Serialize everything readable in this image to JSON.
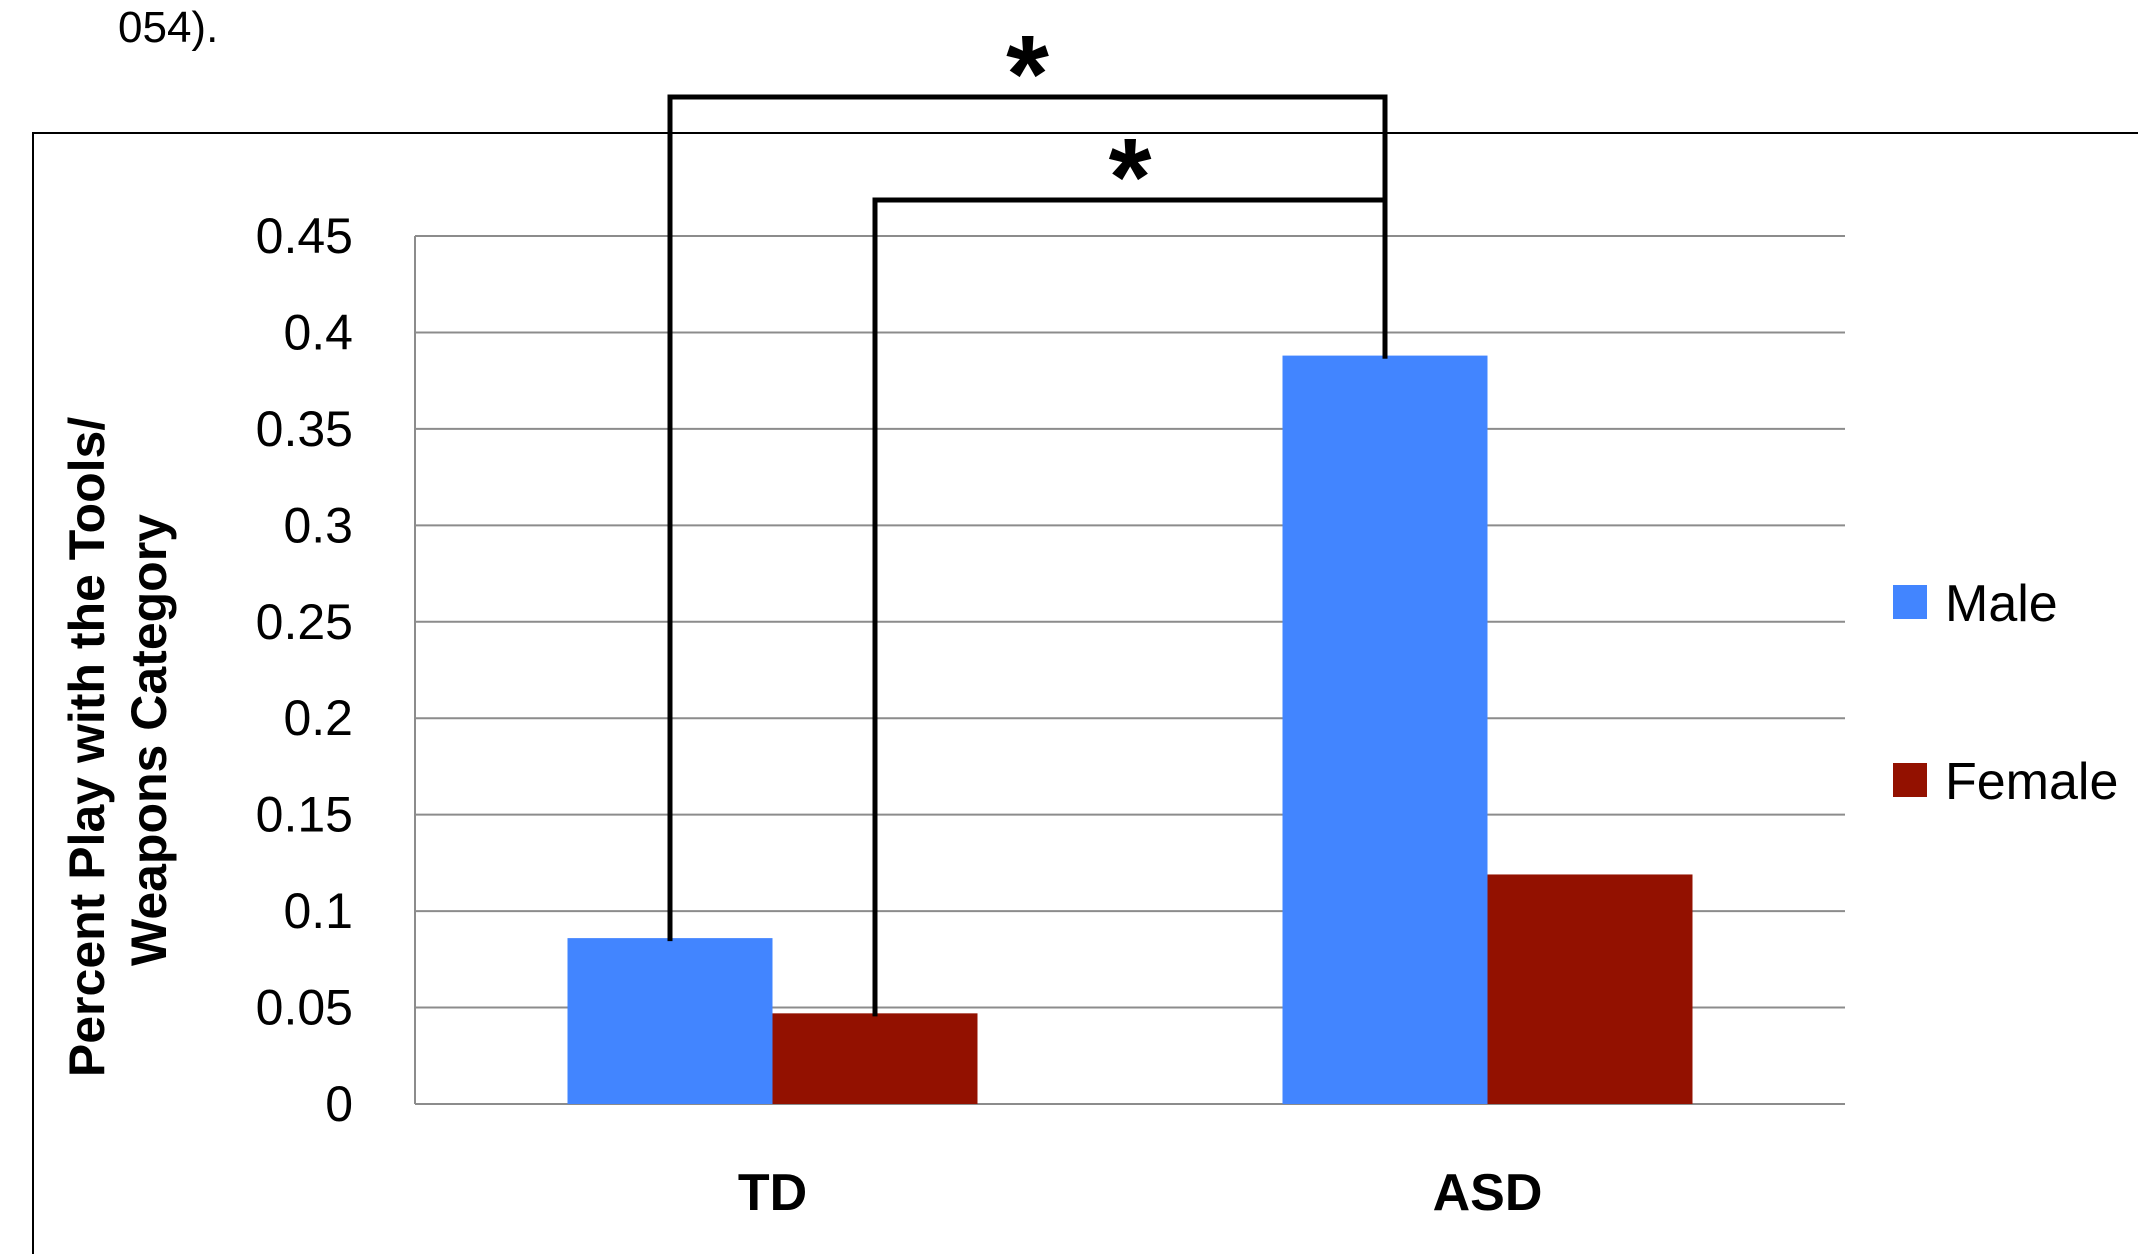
{
  "caption_fragment": "054).",
  "chart_data": {
    "type": "bar",
    "categories": [
      "TD",
      "ASD"
    ],
    "series": [
      {
        "name": "Male",
        "values": [
          0.086,
          0.388
        ],
        "color": "#4285FF"
      },
      {
        "name": "Female",
        "values": [
          0.047,
          0.119
        ],
        "color": "#931100"
      }
    ],
    "ylabel_lines": [
      "Percent Play with the Tools/",
      "Weapons Category"
    ],
    "ylim": [
      0,
      0.45
    ],
    "yticks": [
      "0",
      "0.05",
      "0.1",
      "0.15",
      "0.2",
      "0.25",
      "0.3",
      "0.35",
      "0.4",
      "0.45"
    ],
    "grid": true,
    "legend_position": "right",
    "significance": [
      {
        "label": "*",
        "from": "TD-Male",
        "to": "ASD-Male"
      },
      {
        "label": "*",
        "from": "TD-Female",
        "to": "ASD-Male"
      }
    ]
  }
}
